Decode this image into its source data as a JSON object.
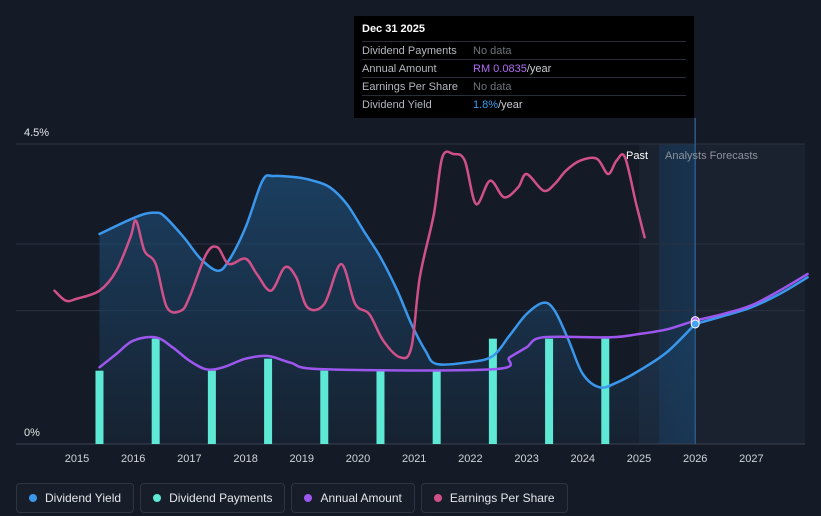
{
  "tooltip": {
    "date": "Dec 31 2025",
    "rows": [
      {
        "label": "Dividend Payments",
        "value": "No data",
        "color": "#6e737b"
      },
      {
        "label": "Annual Amount",
        "value": "RM 0.0835",
        "suffix": "/year",
        "color": "#b06cf5"
      },
      {
        "label": "Earnings Per Share",
        "value": "No data",
        "color": "#6e737b"
      },
      {
        "label": "Dividend Yield",
        "value": "1.8%",
        "suffix": "/year",
        "color": "#3c9cf0"
      }
    ]
  },
  "regions": {
    "past": "Past",
    "forecast": "Analysts Forecasts"
  },
  "legend": [
    {
      "label": "Dividend Yield",
      "color": "#3a97ec"
    },
    {
      "label": "Dividend Payments",
      "color": "#5ee8d6"
    },
    {
      "label": "Annual Amount",
      "color": "#9e57ee"
    },
    {
      "label": "Earnings Per Share",
      "color": "#d0508a"
    }
  ],
  "chart_data": {
    "type": "line",
    "title": "",
    "xlabel": "",
    "ylabel": "",
    "x_ticks": [
      "2015",
      "2016",
      "2017",
      "2018",
      "2019",
      "2020",
      "2021",
      "2022",
      "2023",
      "2024",
      "2025",
      "2026",
      "2027"
    ],
    "y_ticks": [
      "4.5%",
      "0%"
    ],
    "xlim": [
      2014.4,
      2028.0
    ],
    "ylim": [
      0,
      4.5
    ],
    "series": [
      {
        "name": "Dividend Yield",
        "color": "#3a97ec",
        "points": [
          [
            2015.4,
            3.15
          ],
          [
            2015.9,
            3.35
          ],
          [
            2016.2,
            3.45
          ],
          [
            2016.4,
            3.47
          ],
          [
            2016.55,
            3.42
          ],
          [
            2016.9,
            3.1
          ],
          [
            2017.2,
            2.78
          ],
          [
            2017.5,
            2.6
          ],
          [
            2017.7,
            2.75
          ],
          [
            2018.0,
            3.25
          ],
          [
            2018.3,
            3.95
          ],
          [
            2018.5,
            4.02
          ],
          [
            2018.9,
            4.0
          ],
          [
            2019.2,
            3.95
          ],
          [
            2019.5,
            3.85
          ],
          [
            2019.8,
            3.6
          ],
          [
            2020.1,
            3.2
          ],
          [
            2020.4,
            2.8
          ],
          [
            2020.7,
            2.3
          ],
          [
            2020.95,
            1.8
          ],
          [
            2021.2,
            1.4
          ],
          [
            2021.4,
            1.2
          ],
          [
            2022.0,
            1.23
          ],
          [
            2022.4,
            1.32
          ],
          [
            2022.7,
            1.63
          ],
          [
            2023.0,
            1.95
          ],
          [
            2023.3,
            2.12
          ],
          [
            2023.5,
            2.0
          ],
          [
            2023.75,
            1.55
          ],
          [
            2024.0,
            1.05
          ],
          [
            2024.3,
            0.85
          ],
          [
            2024.6,
            0.92
          ],
          [
            2025.0,
            1.1
          ],
          [
            2025.5,
            1.38
          ],
          [
            2026.0,
            1.8
          ]
        ]
      },
      {
        "name": "Dividend Yield (forecast)",
        "color": "#3a97ec",
        "dashed": false,
        "points": [
          [
            2026.0,
            1.8
          ],
          [
            2026.5,
            1.92
          ],
          [
            2027.0,
            2.05
          ],
          [
            2027.5,
            2.25
          ],
          [
            2028.0,
            2.5
          ]
        ]
      },
      {
        "name": "Earnings Per Share",
        "color": "#d0508a",
        "points": [
          [
            2014.6,
            2.3
          ],
          [
            2014.8,
            2.15
          ],
          [
            2015.0,
            2.18
          ],
          [
            2015.4,
            2.3
          ],
          [
            2015.7,
            2.6
          ],
          [
            2015.95,
            3.1
          ],
          [
            2016.05,
            3.35
          ],
          [
            2016.2,
            2.9
          ],
          [
            2016.4,
            2.7
          ],
          [
            2016.6,
            2.05
          ],
          [
            2016.85,
            2.0
          ],
          [
            2017.0,
            2.2
          ],
          [
            2017.3,
            2.85
          ],
          [
            2017.5,
            2.95
          ],
          [
            2017.7,
            2.7
          ],
          [
            2018.0,
            2.78
          ],
          [
            2018.2,
            2.55
          ],
          [
            2018.45,
            2.3
          ],
          [
            2018.7,
            2.65
          ],
          [
            2018.9,
            2.5
          ],
          [
            2019.1,
            2.05
          ],
          [
            2019.4,
            2.1
          ],
          [
            2019.7,
            2.7
          ],
          [
            2019.95,
            2.1
          ],
          [
            2020.2,
            1.95
          ],
          [
            2020.45,
            1.55
          ],
          [
            2020.75,
            1.3
          ],
          [
            2020.95,
            1.45
          ],
          [
            2021.1,
            2.5
          ],
          [
            2021.35,
            3.45
          ],
          [
            2021.5,
            4.3
          ],
          [
            2021.7,
            4.35
          ],
          [
            2021.9,
            4.25
          ],
          [
            2022.1,
            3.6
          ],
          [
            2022.35,
            3.95
          ],
          [
            2022.6,
            3.7
          ],
          [
            2022.85,
            3.85
          ],
          [
            2023.0,
            4.05
          ],
          [
            2023.3,
            3.8
          ],
          [
            2023.5,
            3.9
          ],
          [
            2023.7,
            4.1
          ],
          [
            2023.95,
            4.25
          ],
          [
            2024.25,
            4.28
          ],
          [
            2024.45,
            4.05
          ],
          [
            2024.6,
            4.25
          ],
          [
            2024.75,
            4.3
          ],
          [
            2024.95,
            3.6
          ],
          [
            2025.1,
            3.1
          ]
        ]
      },
      {
        "name": "Annual Amount",
        "color": "#9e57ee",
        "points": [
          [
            2015.4,
            1.15
          ],
          [
            2015.7,
            1.35
          ],
          [
            2016.0,
            1.55
          ],
          [
            2016.4,
            1.6
          ],
          [
            2016.7,
            1.45
          ],
          [
            2017.0,
            1.25
          ],
          [
            2017.3,
            1.12
          ],
          [
            2017.6,
            1.15
          ],
          [
            2018.0,
            1.28
          ],
          [
            2018.4,
            1.32
          ],
          [
            2018.8,
            1.22
          ],
          [
            2019.4,
            1.12
          ],
          [
            2022.4,
            1.12
          ],
          [
            2022.7,
            1.3
          ],
          [
            2023.0,
            1.45
          ],
          [
            2023.3,
            1.6
          ],
          [
            2024.5,
            1.6
          ],
          [
            2025.0,
            1.65
          ],
          [
            2025.5,
            1.72
          ],
          [
            2026.0,
            1.85
          ],
          [
            2026.5,
            1.95
          ],
          [
            2027.0,
            2.08
          ],
          [
            2027.5,
            2.3
          ],
          [
            2028.0,
            2.55
          ]
        ]
      }
    ],
    "bars": {
      "name": "Dividend Payments",
      "color": "#5ee8d6",
      "x": [
        2015.4,
        2016.4,
        2017.4,
        2018.4,
        2019.4,
        2020.4,
        2021.4,
        2022.4,
        2023.4,
        2024.4
      ],
      "values": [
        1.1,
        1.58,
        1.1,
        1.28,
        1.1,
        1.1,
        1.1,
        1.58,
        1.58,
        1.58
      ]
    },
    "forecast_start": 2025.0,
    "marker_x": 2026.0,
    "markers": [
      {
        "series": "Annual Amount",
        "x": 2026.0,
        "y": 1.85
      },
      {
        "series": "Dividend Yield",
        "x": 2026.0,
        "y": 1.8
      }
    ]
  }
}
